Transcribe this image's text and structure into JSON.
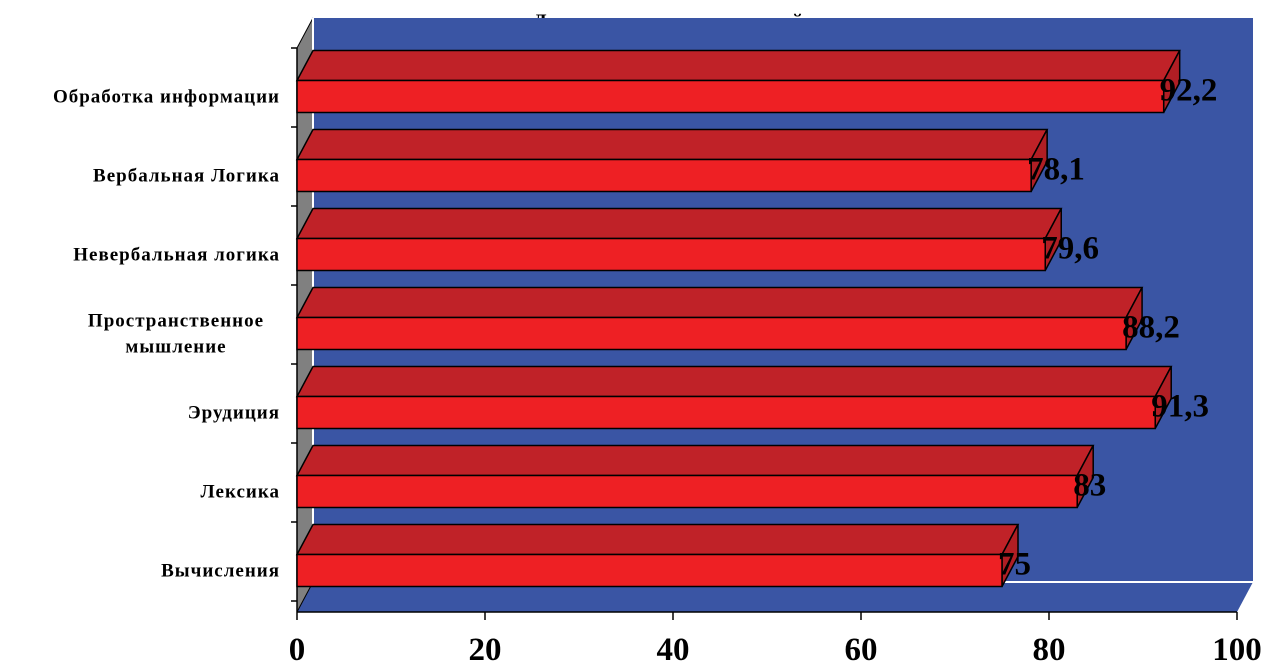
{
  "chart_data": {
    "type": "bar",
    "orientation": "horizontal",
    "title": "Данные по экспериментальной группе",
    "categories": [
      [
        "Обработка информации"
      ],
      [
        "Вербальная Логика"
      ],
      [
        "Невербальная логика"
      ],
      [
        "Пространственное",
        "мышление"
      ],
      [
        "Эрудиция"
      ],
      [
        "Лексика"
      ],
      [
        "Вычисления"
      ]
    ],
    "values": [
      92.2,
      78.1,
      79.6,
      88.2,
      91.3,
      83,
      75
    ],
    "value_labels": [
      "92,2",
      "78,1",
      "79,6",
      "88,2",
      "91,3",
      "83",
      "75"
    ],
    "xlim": [
      0,
      100
    ],
    "xticks": [
      0,
      20,
      40,
      60,
      80,
      100
    ],
    "xtick_labels": [
      "0",
      "20",
      "40",
      "60",
      "80",
      "100"
    ],
    "xlabel": "",
    "ylabel": "",
    "grid": false,
    "legend": "none",
    "style": "3d",
    "colors": {
      "plot_background": "#3a55a4",
      "side_wall": "#808080",
      "bar_front": "#ee2024",
      "bar_top": "#c02228",
      "bar_side": "#b01e24",
      "edge": "#000000"
    }
  }
}
